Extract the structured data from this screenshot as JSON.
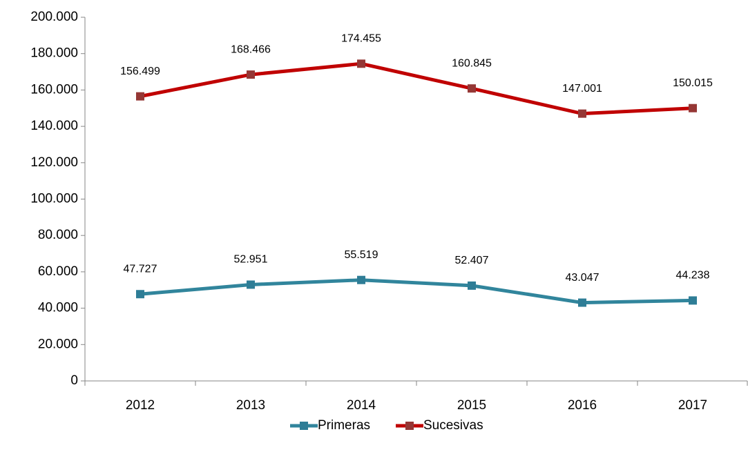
{
  "chart_data": {
    "type": "line",
    "categories": [
      "2012",
      "2013",
      "2014",
      "2015",
      "2016",
      "2017"
    ],
    "series": [
      {
        "name": "Primeras",
        "color": "#31859c",
        "marker_color": "#2e7d96",
        "values": [
          47727,
          52951,
          55519,
          52407,
          43047,
          44238
        ],
        "value_labels": [
          "47.727",
          "52.951",
          "55.519",
          "52.407",
          "43.047",
          "44.238"
        ]
      },
      {
        "name": "Sucesivas",
        "color": "#c00000",
        "marker_color": "#953735",
        "values": [
          156499,
          168466,
          174455,
          160845,
          147001,
          150015
        ],
        "value_labels": [
          "156.499",
          "168.466",
          "174.455",
          "160.845",
          "147.001",
          "150.015"
        ]
      }
    ],
    "ylim": [
      0,
      200000
    ],
    "yticks": [
      0,
      {
        "value": 20000,
        "label": "20.000"
      },
      {
        "value": 40000,
        "label": "40.000"
      },
      {
        "value": 60000,
        "label": "60.000"
      },
      {
        "value": 80000,
        "label": "80.000"
      },
      {
        "value": 100000,
        "label": "100.000"
      },
      {
        "value": 120000,
        "label": "120.000"
      },
      {
        "value": 140000,
        "label": "140.000"
      },
      {
        "value": 160000,
        "label": "160.000"
      },
      {
        "value": 180000,
        "label": "180.000"
      },
      {
        "value": 200000,
        "label": "200.000"
      }
    ],
    "legend": "bottom"
  }
}
